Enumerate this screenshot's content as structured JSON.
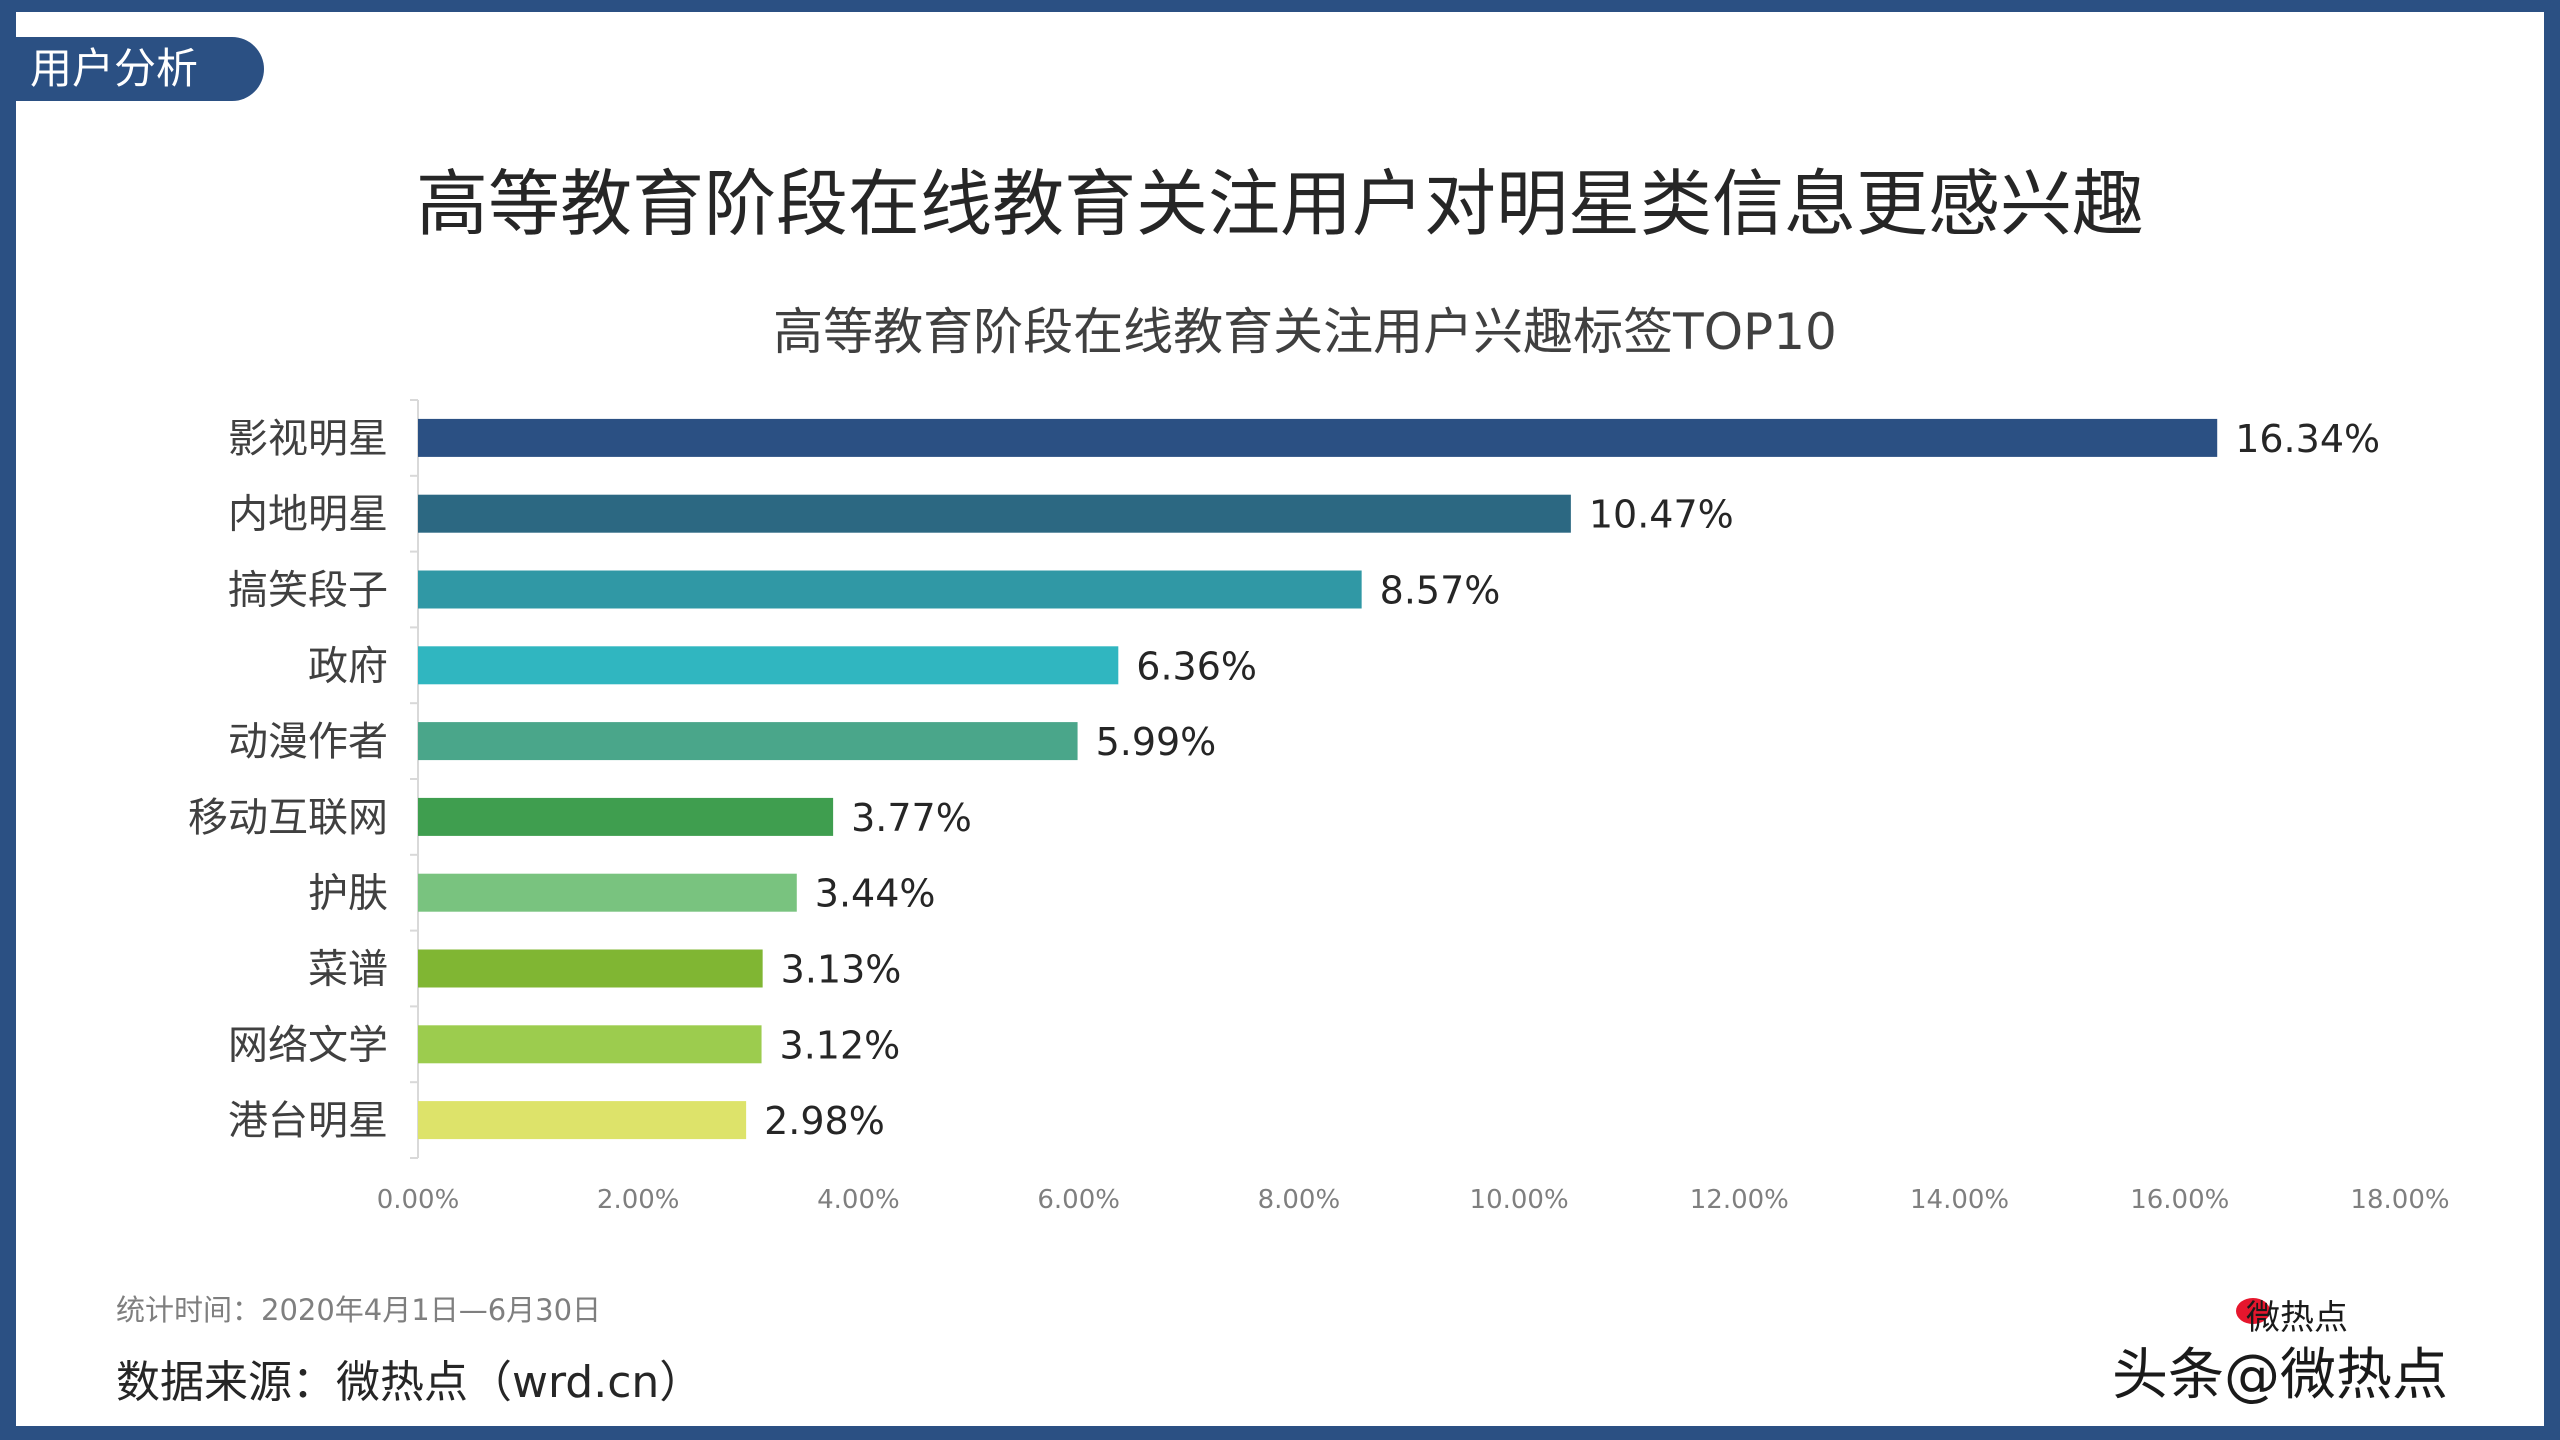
{
  "section_tag": "用户分析",
  "page_title": "高等教育阶段在线教育关注用户对明星类信息更感兴趣",
  "chart_data": {
    "type": "bar",
    "orientation": "horizontal",
    "title": "高等教育阶段在线教育关注用户兴趣标签TOP10",
    "categories": [
      "影视明星",
      "内地明星",
      "搞笑段子",
      "政府",
      "动漫作者",
      "移动互联网",
      "护肤",
      "菜谱",
      "网络文学",
      "港台明星"
    ],
    "values": [
      16.34,
      10.47,
      8.57,
      6.36,
      5.99,
      3.77,
      3.44,
      3.13,
      3.12,
      2.98
    ],
    "value_labels": [
      "16.34%",
      "10.47%",
      "8.57%",
      "6.36%",
      "5.99%",
      "3.77%",
      "3.44%",
      "3.13%",
      "3.12%",
      "2.98%"
    ],
    "bar_colors": [
      "#2b5083",
      "#2c6882",
      "#3098a5",
      "#30b6c0",
      "#4aa68a",
      "#3f9e4f",
      "#79c37f",
      "#80b633",
      "#9ccc4e",
      "#dde36a"
    ],
    "xlim": [
      0,
      18
    ],
    "xticks": [
      "0.00%",
      "2.00%",
      "4.00%",
      "6.00%",
      "8.00%",
      "10.00%",
      "12.00%",
      "14.00%",
      "16.00%",
      "18.00%"
    ],
    "grid": false
  },
  "footer": {
    "stat_time": "统计时间：2020年4月1日—6月30日",
    "source": "数据来源：微热点（wrd.cn）"
  },
  "watermark": {
    "main": "头条@微热点",
    "badge": "微热点"
  },
  "colors": {
    "brand": "#2b5083",
    "text": "#262626",
    "muted": "#7f7f7f"
  }
}
